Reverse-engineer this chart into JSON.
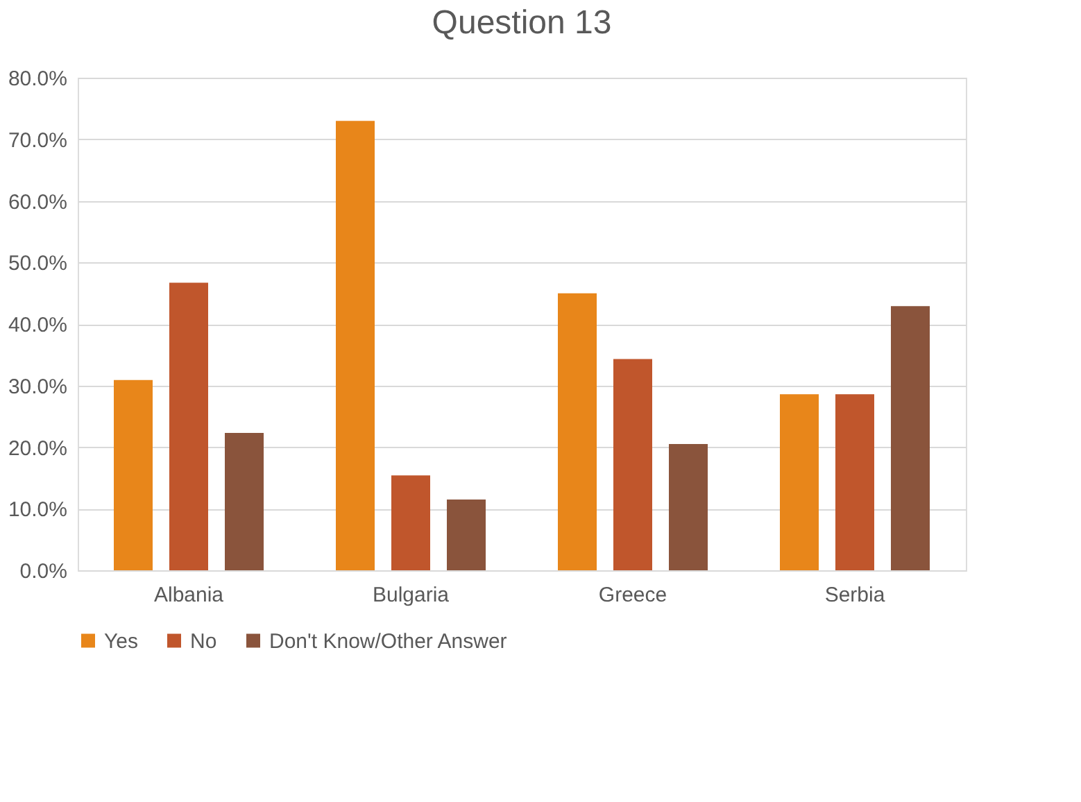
{
  "chart_data": {
    "type": "bar",
    "title": "Question 13",
    "categories": [
      "Albania",
      "Bulgaria",
      "Greece",
      "Serbia"
    ],
    "series": [
      {
        "name": "Yes",
        "color": "#e8861a",
        "values": [
          30.9,
          73.0,
          45.0,
          28.6
        ]
      },
      {
        "name": "No",
        "color": "#c0562c",
        "values": [
          46.7,
          15.4,
          34.3,
          28.6
        ]
      },
      {
        "name": "Don't Know/Other Answer",
        "color": "#8a543c",
        "values": [
          22.3,
          11.5,
          20.5,
          42.9
        ]
      }
    ],
    "ylim": [
      0,
      80
    ],
    "yticks": [
      {
        "value": 0,
        "label": "0.0%"
      },
      {
        "value": 10,
        "label": "10.0%"
      },
      {
        "value": 20,
        "label": "20.0%"
      },
      {
        "value": 30,
        "label": "30.0%"
      },
      {
        "value": 40,
        "label": "40.0%"
      },
      {
        "value": 50,
        "label": "50.0%"
      },
      {
        "value": 60,
        "label": "60.0%"
      },
      {
        "value": 70,
        "label": "70.0%"
      },
      {
        "value": 80,
        "label": "80.0%"
      }
    ],
    "grid": "y",
    "legend": "bottom"
  }
}
